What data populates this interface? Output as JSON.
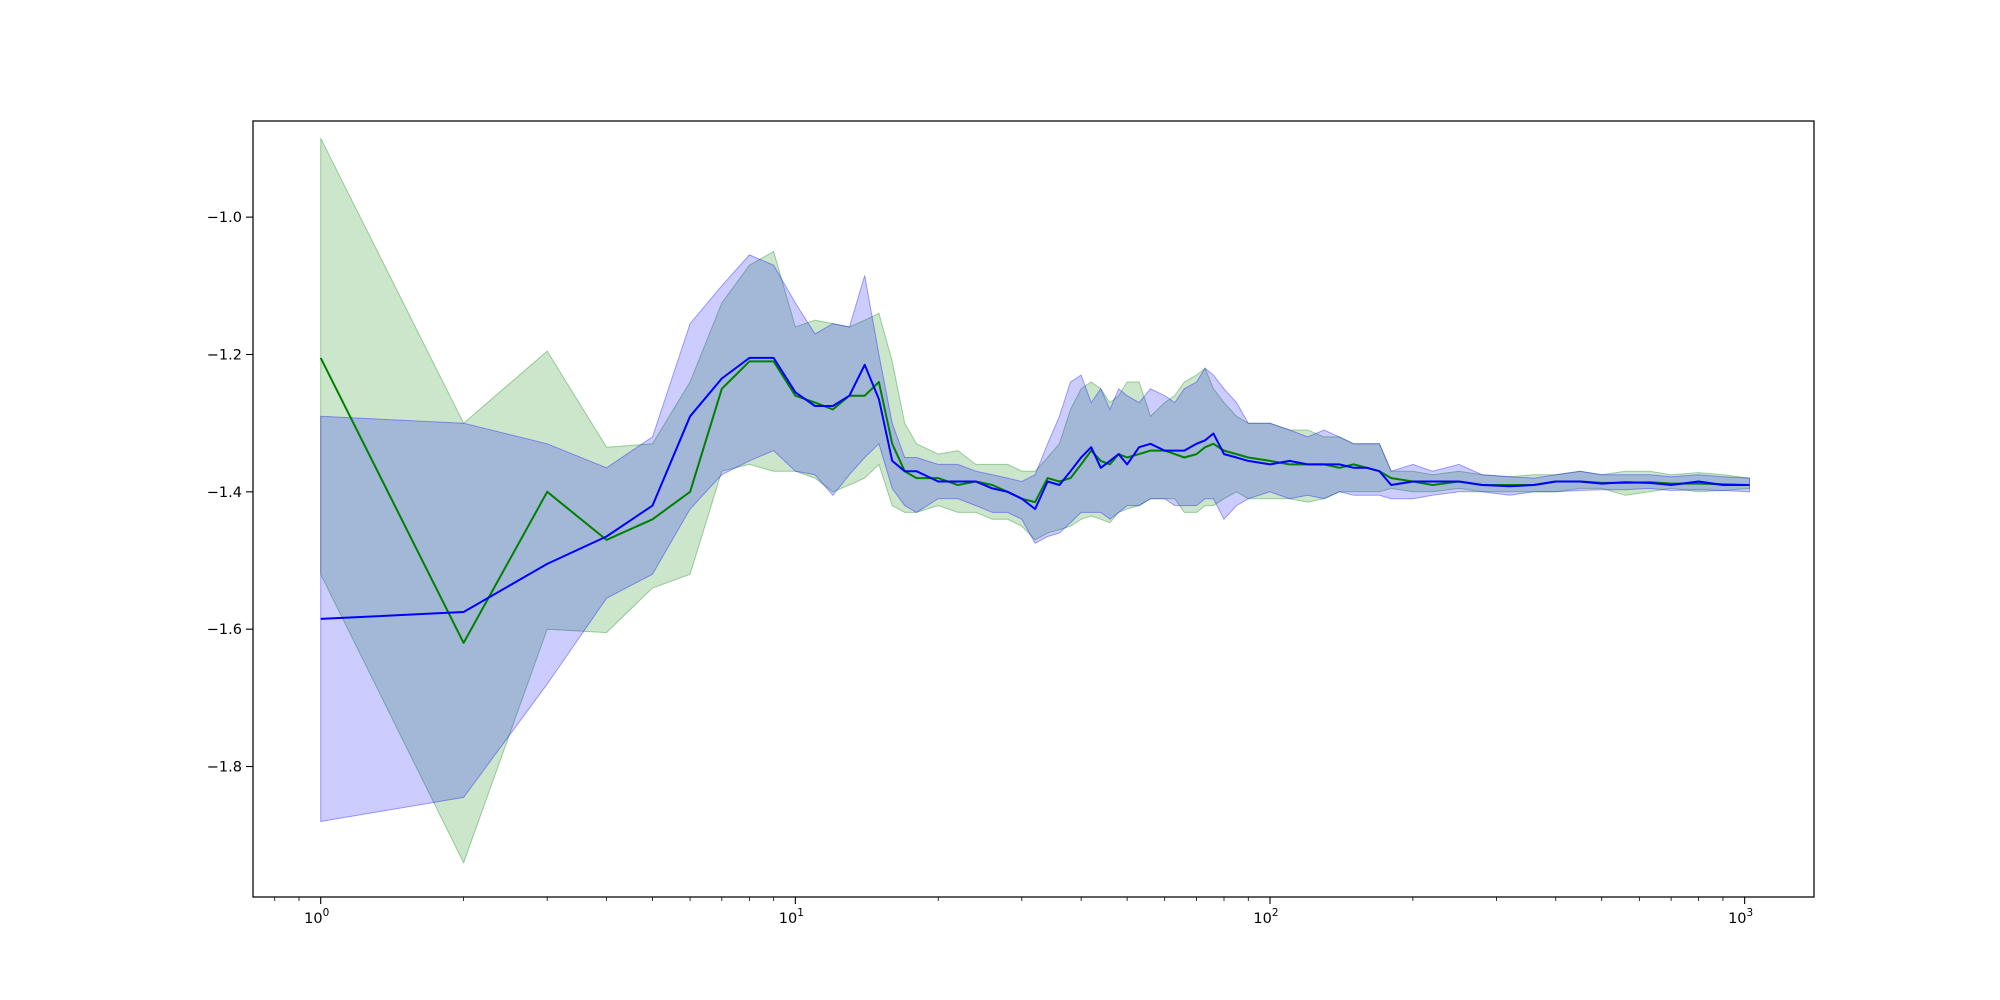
{
  "chart_data": {
    "type": "line",
    "title": "",
    "xlabel": "",
    "ylabel": "",
    "xscale": "log",
    "xlim": [
      0.72,
      1400
    ],
    "ylim": [
      -1.99,
      -0.86
    ],
    "grid": false,
    "legend": "none",
    "x_ticks": [
      {
        "value": 1,
        "base": "10",
        "exp": "0"
      },
      {
        "value": 10,
        "base": "10",
        "exp": "1"
      },
      {
        "value": 100,
        "base": "10",
        "exp": "2"
      },
      {
        "value": 1000,
        "base": "10",
        "exp": "3"
      }
    ],
    "y_ticks": [
      {
        "value": -1.0,
        "label": "−1.0"
      },
      {
        "value": -1.2,
        "label": "−1.2"
      },
      {
        "value": -1.4,
        "label": "−1.4"
      },
      {
        "value": -1.6,
        "label": "−1.6"
      },
      {
        "value": -1.8,
        "label": "−1.8"
      }
    ],
    "series": [
      {
        "color": "#008000",
        "band_color": "#008000",
        "band_opacity": 0.2,
        "x": [
          1,
          2,
          3,
          4,
          5,
          6,
          7,
          8,
          9,
          10,
          11,
          12,
          13,
          14,
          15,
          16,
          17,
          18,
          20,
          22,
          24,
          26,
          28,
          30,
          32,
          34,
          36,
          38,
          40,
          42,
          44,
          46,
          48,
          50,
          53,
          56,
          60,
          63,
          66,
          70,
          73,
          76,
          80,
          85,
          90,
          100,
          110,
          120,
          130,
          140,
          150,
          160,
          170,
          180,
          200,
          220,
          250,
          280,
          320,
          360,
          400,
          450,
          500,
          560,
          630,
          700,
          800,
          900,
          1024
        ],
        "y": [
          -1.205,
          -1.62,
          -1.4,
          -1.47,
          -1.44,
          -1.4,
          -1.25,
          -1.21,
          -1.21,
          -1.26,
          -1.27,
          -1.28,
          -1.26,
          -1.26,
          -1.24,
          -1.33,
          -1.37,
          -1.38,
          -1.38,
          -1.39,
          -1.385,
          -1.39,
          -1.4,
          -1.41,
          -1.415,
          -1.38,
          -1.385,
          -1.38,
          -1.36,
          -1.34,
          -1.355,
          -1.36,
          -1.345,
          -1.35,
          -1.345,
          -1.34,
          -1.34,
          -1.345,
          -1.35,
          -1.345,
          -1.335,
          -1.33,
          -1.34,
          -1.345,
          -1.35,
          -1.355,
          -1.36,
          -1.36,
          -1.36,
          -1.365,
          -1.36,
          -1.365,
          -1.37,
          -1.38,
          -1.385,
          -1.39,
          -1.385,
          -1.39,
          -1.39,
          -1.39,
          -1.385,
          -1.385,
          -1.387,
          -1.387,
          -1.386,
          -1.388,
          -1.388,
          -1.389,
          -1.39
        ],
        "upper": [
          -0.885,
          -1.3,
          -1.195,
          -1.335,
          -1.33,
          -1.24,
          -1.125,
          -1.07,
          -1.05,
          -1.16,
          -1.15,
          -1.155,
          -1.16,
          -1.15,
          -1.14,
          -1.21,
          -1.3,
          -1.33,
          -1.345,
          -1.34,
          -1.36,
          -1.36,
          -1.36,
          -1.37,
          -1.37,
          -1.35,
          -1.33,
          -1.28,
          -1.25,
          -1.24,
          -1.25,
          -1.27,
          -1.26,
          -1.24,
          -1.24,
          -1.29,
          -1.27,
          -1.26,
          -1.24,
          -1.23,
          -1.22,
          -1.25,
          -1.27,
          -1.29,
          -1.3,
          -1.3,
          -1.31,
          -1.31,
          -1.32,
          -1.32,
          -1.33,
          -1.33,
          -1.33,
          -1.37,
          -1.37,
          -1.375,
          -1.37,
          -1.375,
          -1.378,
          -1.375,
          -1.375,
          -1.37,
          -1.375,
          -1.37,
          -1.37,
          -1.375,
          -1.372,
          -1.375,
          -1.38
        ],
        "lower": [
          -1.52,
          -1.94,
          -1.6,
          -1.605,
          -1.54,
          -1.52,
          -1.37,
          -1.36,
          -1.37,
          -1.37,
          -1.38,
          -1.4,
          -1.39,
          -1.38,
          -1.36,
          -1.42,
          -1.43,
          -1.43,
          -1.42,
          -1.43,
          -1.43,
          -1.44,
          -1.44,
          -1.45,
          -1.47,
          -1.46,
          -1.455,
          -1.45,
          -1.44,
          -1.435,
          -1.44,
          -1.445,
          -1.43,
          -1.425,
          -1.42,
          -1.41,
          -1.41,
          -1.41,
          -1.43,
          -1.43,
          -1.42,
          -1.42,
          -1.41,
          -1.4,
          -1.41,
          -1.41,
          -1.41,
          -1.415,
          -1.41,
          -1.4,
          -1.4,
          -1.4,
          -1.4,
          -1.395,
          -1.4,
          -1.4,
          -1.395,
          -1.4,
          -1.4,
          -1.4,
          -1.4,
          -1.395,
          -1.395,
          -1.405,
          -1.4,
          -1.395,
          -1.4,
          -1.398,
          -1.395
        ]
      },
      {
        "color": "#0000ff",
        "band_color": "#0000ff",
        "band_opacity": 0.2,
        "x": [
          1,
          2,
          3,
          4,
          5,
          6,
          7,
          8,
          9,
          10,
          11,
          12,
          13,
          14,
          15,
          16,
          17,
          18,
          20,
          22,
          24,
          26,
          28,
          30,
          32,
          34,
          36,
          38,
          40,
          42,
          44,
          46,
          48,
          50,
          53,
          56,
          60,
          63,
          66,
          70,
          73,
          76,
          80,
          85,
          90,
          100,
          110,
          120,
          130,
          140,
          150,
          160,
          170,
          180,
          200,
          220,
          250,
          280,
          320,
          360,
          400,
          450,
          500,
          560,
          630,
          700,
          800,
          900,
          1024
        ],
        "y": [
          -1.585,
          -1.575,
          -1.505,
          -1.465,
          -1.42,
          -1.29,
          -1.235,
          -1.205,
          -1.205,
          -1.255,
          -1.275,
          -1.275,
          -1.26,
          -1.215,
          -1.265,
          -1.355,
          -1.37,
          -1.37,
          -1.385,
          -1.385,
          -1.385,
          -1.395,
          -1.4,
          -1.41,
          -1.425,
          -1.385,
          -1.39,
          -1.37,
          -1.35,
          -1.335,
          -1.365,
          -1.355,
          -1.345,
          -1.36,
          -1.335,
          -1.33,
          -1.34,
          -1.34,
          -1.34,
          -1.33,
          -1.325,
          -1.315,
          -1.345,
          -1.35,
          -1.355,
          -1.36,
          -1.355,
          -1.36,
          -1.36,
          -1.36,
          -1.365,
          -1.365,
          -1.37,
          -1.39,
          -1.385,
          -1.385,
          -1.385,
          -1.39,
          -1.392,
          -1.39,
          -1.385,
          -1.385,
          -1.388,
          -1.386,
          -1.387,
          -1.39,
          -1.385,
          -1.39,
          -1.39
        ],
        "upper": [
          -1.29,
          -1.3,
          -1.33,
          -1.365,
          -1.32,
          -1.155,
          -1.1,
          -1.055,
          -1.07,
          -1.125,
          -1.17,
          -1.155,
          -1.16,
          -1.085,
          -1.2,
          -1.3,
          -1.35,
          -1.35,
          -1.36,
          -1.36,
          -1.37,
          -1.375,
          -1.38,
          -1.385,
          -1.375,
          -1.33,
          -1.29,
          -1.24,
          -1.23,
          -1.27,
          -1.25,
          -1.28,
          -1.25,
          -1.26,
          -1.27,
          -1.25,
          -1.26,
          -1.27,
          -1.25,
          -1.24,
          -1.22,
          -1.23,
          -1.25,
          -1.27,
          -1.3,
          -1.3,
          -1.31,
          -1.32,
          -1.31,
          -1.32,
          -1.33,
          -1.33,
          -1.33,
          -1.37,
          -1.36,
          -1.37,
          -1.36,
          -1.375,
          -1.378,
          -1.38,
          -1.375,
          -1.37,
          -1.375,
          -1.375,
          -1.375,
          -1.378,
          -1.375,
          -1.378,
          -1.38
        ],
        "lower": [
          -1.88,
          -1.845,
          -1.68,
          -1.555,
          -1.52,
          -1.425,
          -1.375,
          -1.355,
          -1.34,
          -1.37,
          -1.375,
          -1.405,
          -1.375,
          -1.35,
          -1.33,
          -1.395,
          -1.42,
          -1.43,
          -1.41,
          -1.41,
          -1.42,
          -1.43,
          -1.43,
          -1.44,
          -1.475,
          -1.465,
          -1.46,
          -1.445,
          -1.43,
          -1.43,
          -1.43,
          -1.44,
          -1.43,
          -1.42,
          -1.42,
          -1.41,
          -1.41,
          -1.42,
          -1.42,
          -1.42,
          -1.41,
          -1.41,
          -1.44,
          -1.42,
          -1.41,
          -1.4,
          -1.41,
          -1.405,
          -1.41,
          -1.4,
          -1.405,
          -1.405,
          -1.405,
          -1.41,
          -1.41,
          -1.405,
          -1.4,
          -1.4,
          -1.405,
          -1.4,
          -1.4,
          -1.398,
          -1.397,
          -1.397,
          -1.395,
          -1.398,
          -1.397,
          -1.398,
          -1.4
        ]
      }
    ]
  }
}
